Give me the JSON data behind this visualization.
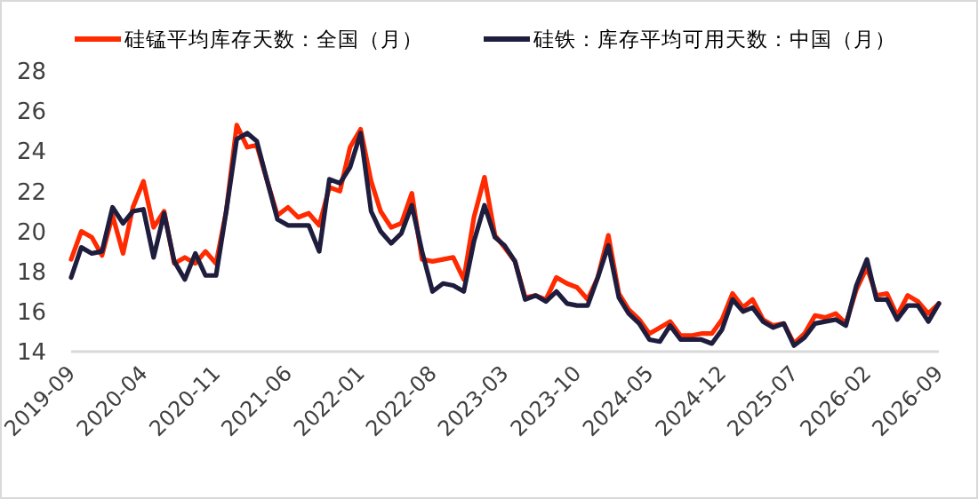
{
  "chart_data": {
    "type": "line",
    "x": [
      "2019-09",
      "2019-10",
      "2019-11",
      "2019-12",
      "2020-01",
      "2020-02",
      "2020-03",
      "2020-04",
      "2020-05",
      "2020-06",
      "2020-07",
      "2020-08",
      "2020-09",
      "2020-10",
      "2020-11",
      "2020-12",
      "2021-01",
      "2021-02",
      "2021-03",
      "2021-04",
      "2021-05",
      "2021-06",
      "2021-07",
      "2021-08",
      "2021-09",
      "2021-10",
      "2021-11",
      "2021-12",
      "2022-01",
      "2022-02",
      "2022-03",
      "2022-04",
      "2022-05",
      "2022-06",
      "2022-07",
      "2022-08",
      "2022-09",
      "2022-10",
      "2022-11",
      "2022-12",
      "2023-01",
      "2023-02",
      "2023-03",
      "2023-04",
      "2023-05",
      "2023-06",
      "2023-07",
      "2023-08",
      "2023-09",
      "2023-10",
      "2023-11",
      "2023-12",
      "2024-01",
      "2024-02",
      "2024-03",
      "2024-04",
      "2024-05",
      "2024-06",
      "2024-07",
      "2024-08",
      "2024-09",
      "2024-10",
      "2024-11",
      "2024-12",
      "2025-01",
      "2025-02",
      "2025-03",
      "2025-04",
      "2025-05",
      "2025-06",
      "2025-07",
      "2025-08",
      "2025-09",
      "2025-10",
      "2025-11",
      "2025-12",
      "2026-01",
      "2026-02",
      "2026-03",
      "2026-04",
      "2026-05",
      "2026-06",
      "2026-07",
      "2026-08",
      "2026-09"
    ],
    "series": [
      {
        "name": "硅锰平均库存天数：全国（月）",
        "color": "#ff2a00",
        "values": [
          18.6,
          20.0,
          19.7,
          18.8,
          20.8,
          18.9,
          21.2,
          22.5,
          20.2,
          21.0,
          18.4,
          18.7,
          18.4,
          19.0,
          18.4,
          21.0,
          25.3,
          24.2,
          24.3,
          22.5,
          20.8,
          21.2,
          20.7,
          20.9,
          20.3,
          22.2,
          22.0,
          24.2,
          25.1,
          22.5,
          21.0,
          20.2,
          20.4,
          21.9,
          18.6,
          18.5,
          18.6,
          18.7,
          17.6,
          20.7,
          22.7,
          19.8,
          19.2,
          18.5,
          16.7,
          16.8,
          16.6,
          17.7,
          17.4,
          17.2,
          16.6,
          17.7,
          19.8,
          16.9,
          16.1,
          15.6,
          14.9,
          15.2,
          15.5,
          14.8,
          14.8,
          14.9,
          14.9,
          15.6,
          16.9,
          16.2,
          16.6,
          15.6,
          15.3,
          15.4,
          14.4,
          14.9,
          15.8,
          15.7,
          15.9,
          15.4,
          17.1,
          18.2,
          16.8,
          16.9,
          15.8,
          16.8,
          16.5,
          15.9,
          16.4
        ]
      },
      {
        "name": "硅铁：库存平均可用天数：中国（月）",
        "color": "#1f1d3d",
        "values": [
          17.7,
          19.2,
          18.9,
          19.0,
          21.2,
          20.4,
          21.0,
          21.1,
          18.7,
          20.9,
          18.5,
          17.6,
          18.9,
          17.8,
          17.8,
          21.0,
          24.6,
          24.9,
          24.5,
          22.5,
          20.6,
          20.3,
          20.3,
          20.3,
          19.0,
          22.6,
          22.4,
          23.2,
          24.9,
          21.0,
          20.0,
          19.4,
          19.9,
          21.3,
          19.0,
          17.0,
          17.4,
          17.3,
          17.0,
          19.5,
          21.3,
          19.7,
          19.3,
          18.5,
          16.6,
          16.8,
          16.5,
          17.0,
          16.4,
          16.3,
          16.3,
          17.7,
          19.3,
          16.7,
          15.9,
          15.4,
          14.6,
          14.5,
          15.3,
          14.6,
          14.6,
          14.6,
          14.4,
          15.1,
          16.6,
          16.0,
          16.2,
          15.5,
          15.2,
          15.4,
          14.3,
          14.7,
          15.4,
          15.5,
          15.6,
          15.3,
          17.3,
          18.6,
          16.6,
          16.6,
          15.6,
          16.3,
          16.3,
          15.5,
          16.4
        ]
      }
    ],
    "xlim": [
      "2019-09",
      "2026-09"
    ],
    "xticks": [
      "2019-09",
      "2020-04",
      "2020-11",
      "2021-06",
      "2022-01",
      "2022-08",
      "2023-03",
      "2023-10",
      "2024-05",
      "2024-12",
      "2025-07",
      "2026-02",
      "2026-09"
    ],
    "ylim": [
      14,
      28
    ],
    "yticks": [
      14,
      16,
      18,
      20,
      22,
      24,
      26,
      28
    ],
    "legend": "top",
    "grid": false,
    "marker": "none",
    "line_style": "solid"
  }
}
